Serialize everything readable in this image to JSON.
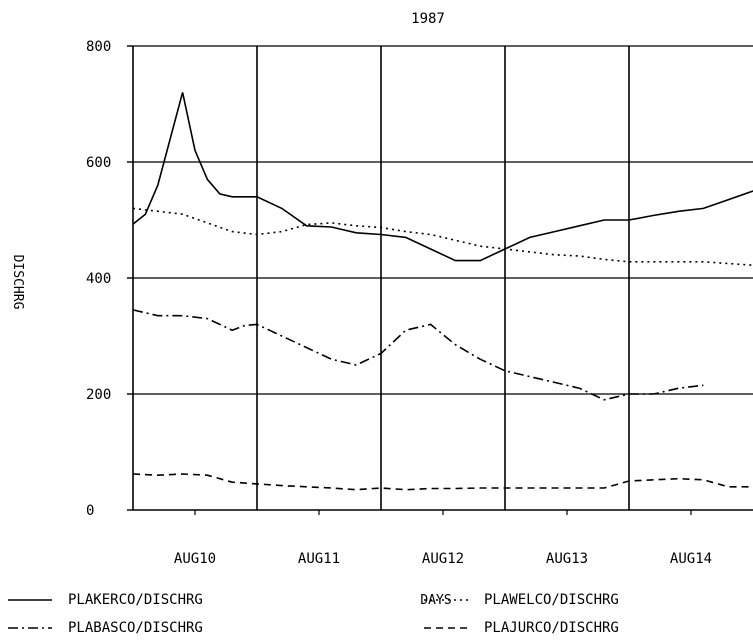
{
  "chart_data": {
    "type": "line",
    "title": "1987",
    "xlabel": "DAYS",
    "ylabel": "DISCHRG",
    "ylim": [
      0,
      800
    ],
    "yticks": [
      0,
      200,
      400,
      600,
      800
    ],
    "xlim": [
      0,
      5
    ],
    "categories": [
      "AUG10",
      "AUG11",
      "AUG12",
      "AUG13",
      "AUG14"
    ],
    "grid": true,
    "legend_position": "bottom",
    "series": [
      {
        "name": "PLAKERCO/DISCHRG",
        "style": "solid",
        "x": [
          0,
          0.1,
          0.2,
          0.3,
          0.4,
          0.5,
          0.6,
          0.7,
          0.8,
          0.9,
          1.0,
          1.2,
          1.4,
          1.6,
          1.8,
          2.0,
          2.2,
          2.4,
          2.6,
          2.8,
          3.0,
          3.2,
          3.4,
          3.6,
          3.8,
          4.0,
          4.2,
          4.4,
          4.6,
          4.8,
          5.0
        ],
        "values": [
          493,
          510,
          560,
          640,
          720,
          620,
          570,
          545,
          540,
          540,
          540,
          520,
          490,
          488,
          478,
          475,
          470,
          450,
          430,
          430,
          450,
          470,
          480,
          490,
          500,
          500,
          508,
          515,
          520,
          535,
          550
        ]
      },
      {
        "name": "PLAWELCO/DISCHRG",
        "style": "dotted",
        "x": [
          0,
          0.2,
          0.4,
          0.6,
          0.8,
          1.0,
          1.2,
          1.4,
          1.6,
          1.8,
          2.0,
          2.2,
          2.4,
          2.6,
          2.8,
          3.0,
          3.2,
          3.4,
          3.6,
          3.8,
          4.0,
          4.2,
          4.4,
          4.6,
          4.8,
          5.0
        ],
        "values": [
          520,
          515,
          510,
          495,
          480,
          475,
          480,
          492,
          495,
          490,
          487,
          480,
          475,
          465,
          455,
          450,
          445,
          440,
          438,
          432,
          428,
          428,
          428,
          428,
          425,
          422
        ]
      },
      {
        "name": "PLABASCO/DISCHRG",
        "style": "dash-dot",
        "x": [
          0,
          0.2,
          0.4,
          0.6,
          0.7,
          0.8,
          0.9,
          1.0,
          1.1,
          1.2,
          1.4,
          1.6,
          1.8,
          2.0,
          2.2,
          2.4,
          2.6,
          2.8,
          3.0,
          3.2,
          3.4,
          3.6,
          3.8,
          4.0,
          4.2,
          4.4,
          4.6
        ],
        "values": [
          345,
          335,
          335,
          330,
          320,
          310,
          318,
          320,
          310,
          300,
          280,
          260,
          250,
          270,
          310,
          320,
          285,
          260,
          240,
          230,
          220,
          210,
          190,
          200,
          200,
          210,
          215
        ]
      },
      {
        "name": "PLAJURCO/DISCHRG",
        "style": "dashed",
        "x": [
          0,
          0.2,
          0.4,
          0.6,
          0.8,
          1.0,
          1.2,
          1.4,
          1.6,
          1.8,
          2.0,
          2.2,
          2.4,
          2.6,
          2.8,
          3.0,
          3.2,
          3.4,
          3.6,
          3.8,
          4.0,
          4.2,
          4.4,
          4.6,
          4.8,
          5.0
        ],
        "values": [
          62,
          60,
          62,
          60,
          48,
          45,
          42,
          40,
          38,
          35,
          38,
          35,
          37,
          37,
          38,
          38,
          38,
          38,
          38,
          38,
          50,
          52,
          54,
          52,
          40,
          40
        ]
      }
    ]
  }
}
